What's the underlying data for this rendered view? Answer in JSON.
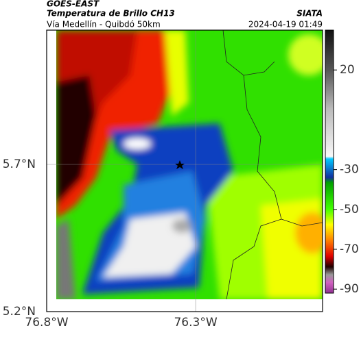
{
  "header": {
    "source": "GOES-EAST",
    "title": "Temperatura de Brillo CH13",
    "agency": "SIATA",
    "subtitle": "Vía Medellín - Quibdó 50km",
    "timestamp": "2024-04-19 01:49"
  },
  "map": {
    "xlim": [
      -76.8,
      -75.874
    ],
    "ylim": [
      5.2,
      6.156
    ],
    "xticks": [
      {
        "value": -76.8,
        "label": "76.8°W"
      },
      {
        "value": -76.3,
        "label": "76.3°W"
      }
    ],
    "yticks": [
      {
        "value": 5.2,
        "label": "5.2°N"
      },
      {
        "value": 5.7,
        "label": "5.7°N"
      }
    ]
  },
  "colorbar": {
    "lim": [
      40,
      -92
    ],
    "ticks": [
      20,
      -30,
      -50,
      -70,
      -90
    ]
  }
}
